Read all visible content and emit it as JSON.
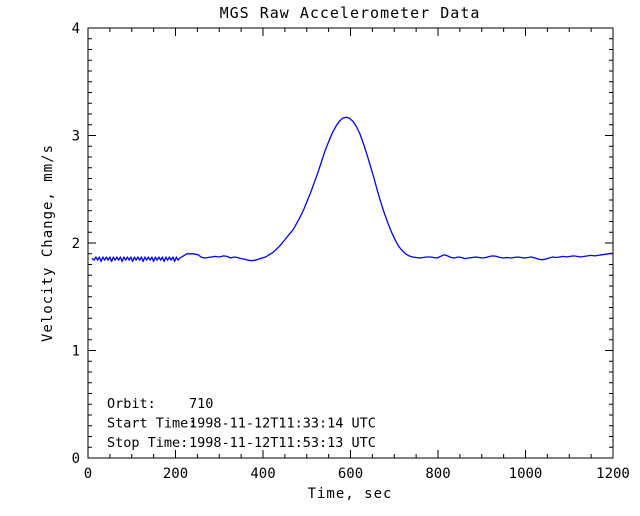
{
  "chart_data": {
    "type": "line",
    "title": "MGS Raw Accelerometer Data",
    "xlabel": "Time, sec",
    "ylabel": "Velocity Change, mm/s",
    "xlim": [
      0,
      1200
    ],
    "ylim": [
      0,
      4
    ],
    "x_ticks": [
      0,
      200,
      400,
      600,
      800,
      1000,
      1200
    ],
    "y_ticks": [
      0,
      1,
      2,
      3,
      4
    ],
    "x_minor_divisions": 4,
    "y_minor_divisions": 10,
    "grid": false,
    "legend": "none",
    "background_color": "#ffffff",
    "axis_color": "#000000",
    "line_color": "#0000ff",
    "annotations": [
      {
        "label": "Orbit:",
        "value": "710"
      },
      {
        "label": "Start Time:",
        "value": "1998-11-12T11:33:14 UTC"
      },
      {
        "label": "Stop Time:",
        "value": "1998-11-12T11:53:13 UTC"
      }
    ],
    "series": [
      {
        "name": "raw-accelerometer-velocity-change",
        "points": [
          [
            10,
            1.855
          ],
          [
            14,
            1.84
          ],
          [
            18,
            1.87
          ],
          [
            22,
            1.84
          ],
          [
            26,
            1.87
          ],
          [
            30,
            1.828
          ],
          [
            34,
            1.87
          ],
          [
            38,
            1.84
          ],
          [
            42,
            1.87
          ],
          [
            46,
            1.84
          ],
          [
            50,
            1.87
          ],
          [
            54,
            1.828
          ],
          [
            58,
            1.87
          ],
          [
            62,
            1.84
          ],
          [
            66,
            1.87
          ],
          [
            70,
            1.84
          ],
          [
            74,
            1.87
          ],
          [
            78,
            1.828
          ],
          [
            82,
            1.87
          ],
          [
            86,
            1.84
          ],
          [
            90,
            1.87
          ],
          [
            94,
            1.84
          ],
          [
            98,
            1.87
          ],
          [
            102,
            1.828
          ],
          [
            106,
            1.87
          ],
          [
            110,
            1.84
          ],
          [
            114,
            1.87
          ],
          [
            118,
            1.84
          ],
          [
            122,
            1.87
          ],
          [
            126,
            1.828
          ],
          [
            130,
            1.87
          ],
          [
            134,
            1.84
          ],
          [
            138,
            1.87
          ],
          [
            142,
            1.84
          ],
          [
            146,
            1.87
          ],
          [
            150,
            1.828
          ],
          [
            154,
            1.87
          ],
          [
            158,
            1.84
          ],
          [
            162,
            1.87
          ],
          [
            166,
            1.84
          ],
          [
            170,
            1.87
          ],
          [
            174,
            1.828
          ],
          [
            178,
            1.87
          ],
          [
            182,
            1.84
          ],
          [
            186,
            1.87
          ],
          [
            190,
            1.84
          ],
          [
            194,
            1.87
          ],
          [
            198,
            1.828
          ],
          [
            202,
            1.87
          ],
          [
            206,
            1.84
          ],
          [
            210,
            1.86
          ],
          [
            218,
            1.88
          ],
          [
            226,
            1.9
          ],
          [
            240,
            1.9
          ],
          [
            252,
            1.89
          ],
          [
            258,
            1.87
          ],
          [
            266,
            1.86
          ],
          [
            274,
            1.865
          ],
          [
            282,
            1.87
          ],
          [
            290,
            1.875
          ],
          [
            300,
            1.87
          ],
          [
            310,
            1.88
          ],
          [
            318,
            1.875
          ],
          [
            326,
            1.86
          ],
          [
            334,
            1.87
          ],
          [
            342,
            1.865
          ],
          [
            350,
            1.855
          ],
          [
            358,
            1.85
          ],
          [
            366,
            1.84
          ],
          [
            374,
            1.835
          ],
          [
            382,
            1.84
          ],
          [
            390,
            1.85
          ],
          [
            398,
            1.86
          ],
          [
            406,
            1.87
          ],
          [
            414,
            1.89
          ],
          [
            422,
            1.91
          ],
          [
            430,
            1.94
          ],
          [
            438,
            1.97
          ],
          [
            446,
            2.01
          ],
          [
            454,
            2.05
          ],
          [
            462,
            2.09
          ],
          [
            470,
            2.13
          ],
          [
            478,
            2.19
          ],
          [
            486,
            2.25
          ],
          [
            494,
            2.32
          ],
          [
            502,
            2.4
          ],
          [
            510,
            2.48
          ],
          [
            518,
            2.57
          ],
          [
            526,
            2.66
          ],
          [
            534,
            2.76
          ],
          [
            542,
            2.86
          ],
          [
            550,
            2.94
          ],
          [
            558,
            3.02
          ],
          [
            566,
            3.08
          ],
          [
            574,
            3.13
          ],
          [
            582,
            3.16
          ],
          [
            590,
            3.17
          ],
          [
            598,
            3.16
          ],
          [
            606,
            3.13
          ],
          [
            614,
            3.08
          ],
          [
            622,
            3.01
          ],
          [
            630,
            2.92
          ],
          [
            638,
            2.82
          ],
          [
            646,
            2.71
          ],
          [
            654,
            2.6
          ],
          [
            662,
            2.48
          ],
          [
            670,
            2.37
          ],
          [
            678,
            2.27
          ],
          [
            686,
            2.18
          ],
          [
            694,
            2.1
          ],
          [
            702,
            2.03
          ],
          [
            710,
            1.97
          ],
          [
            718,
            1.93
          ],
          [
            726,
            1.9
          ],
          [
            734,
            1.88
          ],
          [
            742,
            1.87
          ],
          [
            750,
            1.865
          ],
          [
            758,
            1.86
          ],
          [
            766,
            1.865
          ],
          [
            774,
            1.87
          ],
          [
            782,
            1.87
          ],
          [
            790,
            1.865
          ],
          [
            798,
            1.86
          ],
          [
            806,
            1.875
          ],
          [
            814,
            1.89
          ],
          [
            822,
            1.88
          ],
          [
            830,
            1.865
          ],
          [
            838,
            1.86
          ],
          [
            846,
            1.87
          ],
          [
            854,
            1.865
          ],
          [
            862,
            1.855
          ],
          [
            870,
            1.86
          ],
          [
            878,
            1.865
          ],
          [
            886,
            1.87
          ],
          [
            894,
            1.865
          ],
          [
            902,
            1.86
          ],
          [
            910,
            1.865
          ],
          [
            918,
            1.875
          ],
          [
            926,
            1.88
          ],
          [
            934,
            1.875
          ],
          [
            942,
            1.865
          ],
          [
            950,
            1.86
          ],
          [
            958,
            1.865
          ],
          [
            966,
            1.86
          ],
          [
            974,
            1.865
          ],
          [
            982,
            1.87
          ],
          [
            990,
            1.865
          ],
          [
            998,
            1.86
          ],
          [
            1006,
            1.865
          ],
          [
            1014,
            1.87
          ],
          [
            1022,
            1.86
          ],
          [
            1030,
            1.85
          ],
          [
            1038,
            1.845
          ],
          [
            1046,
            1.85
          ],
          [
            1054,
            1.86
          ],
          [
            1062,
            1.87
          ],
          [
            1070,
            1.865
          ],
          [
            1078,
            1.87
          ],
          [
            1086,
            1.875
          ],
          [
            1094,
            1.87
          ],
          [
            1102,
            1.875
          ],
          [
            1110,
            1.88
          ],
          [
            1118,
            1.875
          ],
          [
            1126,
            1.87
          ],
          [
            1134,
            1.875
          ],
          [
            1142,
            1.88
          ],
          [
            1150,
            1.885
          ],
          [
            1158,
            1.88
          ],
          [
            1166,
            1.885
          ],
          [
            1174,
            1.89
          ],
          [
            1182,
            1.895
          ],
          [
            1190,
            1.9
          ],
          [
            1196,
            1.905
          ]
        ]
      }
    ]
  }
}
